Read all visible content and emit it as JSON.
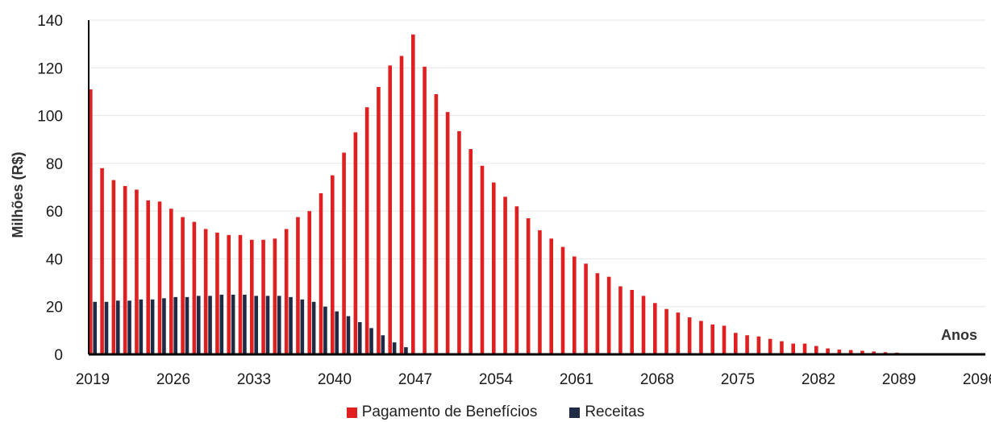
{
  "chart_data": {
    "type": "bar",
    "title": "",
    "xlabel": "Anos",
    "ylabel": "Milhões (R$)",
    "ylim": [
      0,
      140
    ],
    "yticks": [
      0,
      20,
      40,
      60,
      80,
      100,
      120,
      140
    ],
    "x_tick_labels": [
      "2019",
      "2026",
      "2033",
      "2040",
      "2047",
      "2054",
      "2061",
      "2068",
      "2075",
      "2082",
      "2089",
      "2096"
    ],
    "grid": true,
    "legend": "bottom",
    "categories": [
      2019,
      2020,
      2021,
      2022,
      2023,
      2024,
      2025,
      2026,
      2027,
      2028,
      2029,
      2030,
      2031,
      2032,
      2033,
      2034,
      2035,
      2036,
      2037,
      2038,
      2039,
      2040,
      2041,
      2042,
      2043,
      2044,
      2045,
      2046,
      2047,
      2048,
      2049,
      2050,
      2051,
      2052,
      2053,
      2054,
      2055,
      2056,
      2057,
      2058,
      2059,
      2060,
      2061,
      2062,
      2063,
      2064,
      2065,
      2066,
      2067,
      2068,
      2069,
      2070,
      2071,
      2072,
      2073,
      2074,
      2075,
      2076,
      2077,
      2078,
      2079,
      2080,
      2081,
      2082,
      2083,
      2084,
      2085,
      2086,
      2087,
      2088,
      2089,
      2090,
      2091,
      2092,
      2093,
      2094,
      2095,
      2096
    ],
    "series": [
      {
        "name": "Pagamento de Benefícios",
        "color": "#e02020",
        "values": [
          111,
          78,
          73,
          70.5,
          69,
          64.5,
          64,
          61,
          57.5,
          55.5,
          52.5,
          51,
          50,
          50,
          48,
          48,
          48.5,
          52.5,
          57.5,
          60,
          67.5,
          75,
          84.5,
          93,
          103.5,
          112,
          121,
          125,
          134,
          120.5,
          109,
          101.5,
          93.5,
          86,
          79,
          72,
          66,
          62,
          57,
          52,
          48.5,
          45,
          41,
          38,
          34,
          32.5,
          28.5,
          27,
          24.5,
          21.5,
          19,
          17.5,
          15.5,
          14,
          12.5,
          12,
          9,
          8,
          7.5,
          6.5,
          5.5,
          4.5,
          4.5,
          3.5,
          2.5,
          2,
          1.8,
          1.5,
          1.2,
          0.9,
          0.7,
          0.5,
          0.4,
          0.3,
          0.2,
          0.2,
          0.1,
          0.1
        ]
      },
      {
        "name": "Receitas",
        "color": "#1f2a44",
        "values": [
          22,
          22,
          22.5,
          22.5,
          23,
          23,
          23.5,
          24,
          24,
          24.5,
          24.5,
          25,
          25,
          25,
          24.5,
          24.5,
          24.5,
          24,
          23,
          22,
          20,
          18,
          16,
          13.5,
          11,
          8,
          5,
          3,
          0,
          0,
          0,
          0,
          0,
          0,
          0,
          0,
          0,
          0,
          0,
          0,
          0,
          0,
          0,
          0,
          0,
          0,
          0,
          0,
          0,
          0,
          0,
          0,
          0,
          0,
          0,
          0,
          0,
          0,
          0,
          0,
          0,
          0,
          0,
          0,
          0,
          0,
          0,
          0,
          0,
          0,
          0,
          0,
          0,
          0,
          0,
          0,
          0,
          0
        ]
      }
    ]
  }
}
